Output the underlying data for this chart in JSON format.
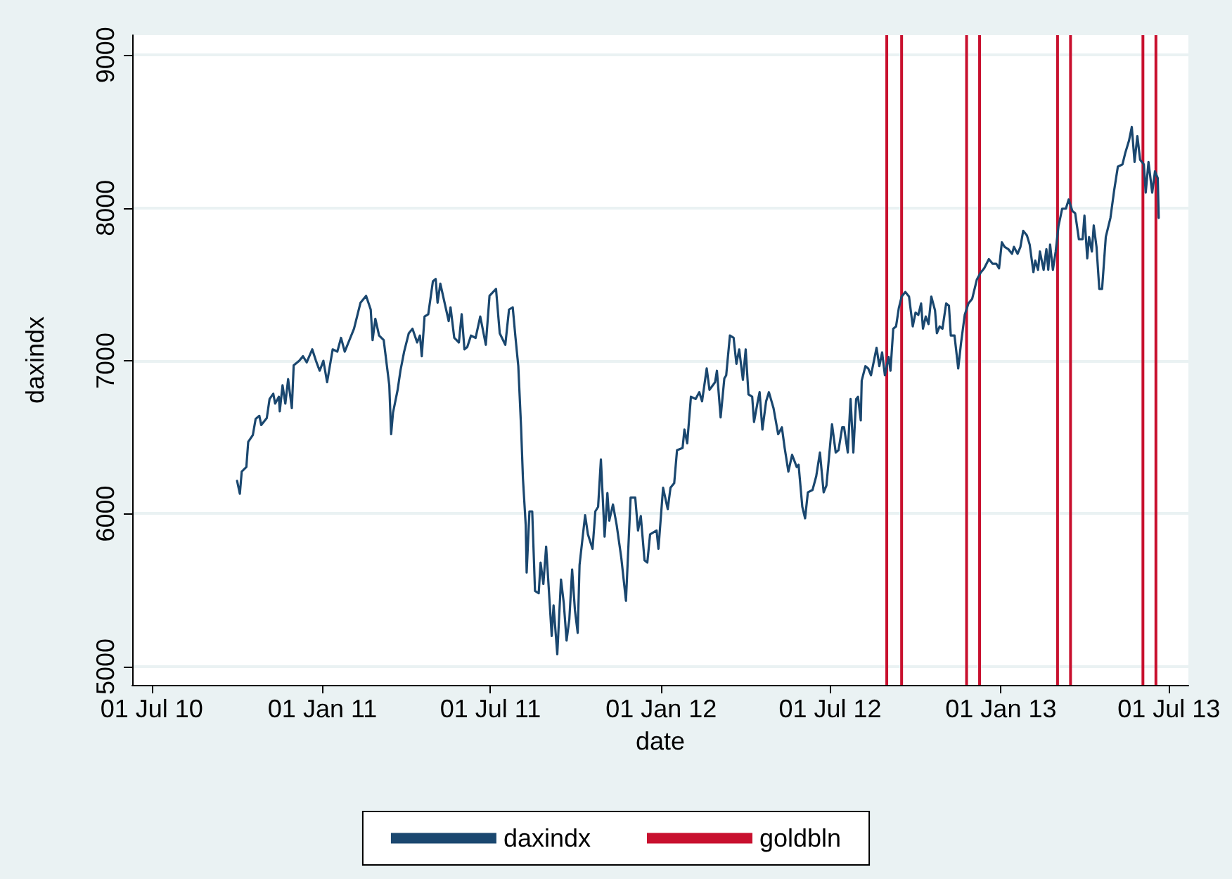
{
  "chart_data": {
    "type": "line",
    "xlabel": "date",
    "ylabel": "daxindx",
    "xlim": [
      "2010-06-10",
      "2013-07-22"
    ],
    "ylim": [
      4880,
      9130
    ],
    "xticks": [
      {
        "value": "2010-07-01",
        "label": "01 Jul 10"
      },
      {
        "value": "2011-01-01",
        "label": "01 Jan 11"
      },
      {
        "value": "2011-07-01",
        "label": "01 Jul 11"
      },
      {
        "value": "2012-01-01",
        "label": "01 Jan 12"
      },
      {
        "value": "2012-07-01",
        "label": "01 Jul 12"
      },
      {
        "value": "2013-01-01",
        "label": "01 Jan 13"
      },
      {
        "value": "2013-07-01",
        "label": "01 Jul 13"
      }
    ],
    "yticks": [
      5000,
      6000,
      7000,
      8000,
      9000
    ],
    "grid": "y",
    "legend": "bottom",
    "marker": "none",
    "series": [
      {
        "name": "daxindx",
        "color": "#1a476f",
        "x": [
          "2010-10-01",
          "2010-10-04",
          "2010-10-06",
          "2010-10-11",
          "2010-10-13",
          "2010-10-18",
          "2010-10-21",
          "2010-10-25",
          "2010-10-27",
          "2010-11-02",
          "2010-11-05",
          "2010-11-09",
          "2010-11-11",
          "2010-11-15",
          "2010-11-16",
          "2010-11-19",
          "2010-11-22",
          "2010-11-25",
          "2010-11-29",
          "2010-12-01",
          "2010-12-07",
          "2010-12-11",
          "2010-12-15",
          "2010-12-21",
          "2010-12-25",
          "2010-12-29",
          "2011-01-02",
          "2011-01-06",
          "2011-01-12",
          "2011-01-17",
          "2011-01-21",
          "2011-01-25",
          "2011-01-30",
          "2011-02-04",
          "2011-02-11",
          "2011-02-17",
          "2011-02-22",
          "2011-02-24",
          "2011-02-27",
          "2011-03-03",
          "2011-03-08",
          "2011-03-14",
          "2011-03-16",
          "2011-03-18",
          "2011-03-23",
          "2011-03-26",
          "2011-03-30",
          "2011-04-04",
          "2011-04-08",
          "2011-04-13",
          "2011-04-16",
          "2011-04-18",
          "2011-04-21",
          "2011-04-25",
          "2011-04-30",
          "2011-05-03",
          "2011-05-05",
          "2011-05-08",
          "2011-05-12",
          "2011-05-17",
          "2011-05-19",
          "2011-05-23",
          "2011-05-28",
          "2011-05-31",
          "2011-06-03",
          "2011-06-06",
          "2011-06-10",
          "2011-06-15",
          "2011-06-20",
          "2011-06-26",
          "2011-06-30",
          "2011-07-07",
          "2011-07-11",
          "2011-07-17",
          "2011-07-21",
          "2011-07-25",
          "2011-07-28",
          "2011-07-31",
          "2011-08-03",
          "2011-08-05",
          "2011-08-08",
          "2011-08-09",
          "2011-08-12",
          "2011-08-15",
          "2011-08-18",
          "2011-08-22",
          "2011-08-24",
          "2011-08-27",
          "2011-08-30",
          "2011-09-02",
          "2011-09-05",
          "2011-09-07",
          "2011-09-11",
          "2011-09-15",
          "2011-09-18",
          "2011-09-21",
          "2011-09-24",
          "2011-09-27",
          "2011-09-30",
          "2011-10-03",
          "2011-10-05",
          "2011-10-11",
          "2011-10-14",
          "2011-10-19",
          "2011-10-22",
          "2011-10-25",
          "2011-10-28",
          "2011-11-01",
          "2011-11-04",
          "2011-11-06",
          "2011-11-10",
          "2011-11-14",
          "2011-11-19",
          "2011-11-24",
          "2011-11-29",
          "2011-12-04",
          "2011-12-07",
          "2011-12-10",
          "2011-12-14",
          "2011-12-17",
          "2011-12-20",
          "2011-12-27",
          "2011-12-29",
          "2012-01-03",
          "2012-01-08",
          "2012-01-11",
          "2012-01-15",
          "2012-01-18",
          "2012-01-24",
          "2012-01-26",
          "2012-01-29",
          "2012-02-02",
          "2012-02-07",
          "2012-02-11",
          "2012-02-14",
          "2012-02-19",
          "2012-02-22",
          "2012-02-28",
          "2012-03-01",
          "2012-03-05",
          "2012-03-09",
          "2012-03-11",
          "2012-03-15",
          "2012-03-19",
          "2012-03-22",
          "2012-03-25",
          "2012-03-29",
          "2012-04-01",
          "2012-04-04",
          "2012-04-08",
          "2012-04-10",
          "2012-04-14",
          "2012-04-16",
          "2012-04-19",
          "2012-04-23",
          "2012-04-26",
          "2012-05-01",
          "2012-05-06",
          "2012-05-10",
          "2012-05-13",
          "2012-05-17",
          "2012-05-21",
          "2012-05-26",
          "2012-05-28",
          "2012-06-01",
          "2012-06-04",
          "2012-06-07",
          "2012-06-12",
          "2012-06-16",
          "2012-06-20",
          "2012-06-24",
          "2012-06-27",
          "2012-07-03",
          "2012-07-07",
          "2012-07-10",
          "2012-07-14",
          "2012-07-16",
          "2012-07-20",
          "2012-07-23",
          "2012-07-26",
          "2012-07-29",
          "2012-07-31",
          "2012-08-03",
          "2012-08-04",
          "2012-08-08",
          "2012-08-11",
          "2012-08-14",
          "2012-08-18",
          "2012-08-20",
          "2012-08-23",
          "2012-08-26",
          "2012-08-29",
          "2012-09-02",
          "2012-09-04",
          "2012-09-07",
          "2012-09-10",
          "2012-09-13",
          "2012-09-16",
          "2012-09-20",
          "2012-09-24",
          "2012-09-28",
          "2012-10-01",
          "2012-10-04",
          "2012-10-07",
          "2012-10-09",
          "2012-10-12",
          "2012-10-15",
          "2012-10-18",
          "2012-10-22",
          "2012-10-24",
          "2012-10-27",
          "2012-10-30",
          "2012-11-03",
          "2012-11-06",
          "2012-11-08",
          "2012-11-12",
          "2012-11-16",
          "2012-11-19",
          "2012-11-23",
          "2012-11-27",
          "2012-12-01",
          "2012-12-06",
          "2012-12-10",
          "2012-12-14",
          "2012-12-19",
          "2012-12-23",
          "2012-12-27",
          "2012-12-30",
          "2013-01-02",
          "2013-01-05",
          "2013-01-09",
          "2013-01-13",
          "2013-01-15",
          "2013-01-19",
          "2013-01-22",
          "2013-01-25",
          "2013-01-29",
          "2013-02-01",
          "2013-02-05",
          "2013-02-07",
          "2013-02-10",
          "2013-02-12",
          "2013-02-16",
          "2013-02-19",
          "2013-02-21",
          "2013-02-23",
          "2013-02-26",
          "2013-03-01",
          "2013-03-04",
          "2013-03-08",
          "2013-03-12",
          "2013-03-15",
          "2013-03-19",
          "2013-03-22",
          "2013-03-26",
          "2013-03-30",
          "2013-04-01",
          "2013-04-04",
          "2013-04-06",
          "2013-04-09",
          "2013-04-11",
          "2013-04-14",
          "2013-04-17",
          "2013-04-20",
          "2013-04-24",
          "2013-04-29",
          "2013-05-03",
          "2013-05-07",
          "2013-05-12",
          "2013-05-15",
          "2013-05-19",
          "2013-05-22",
          "2013-05-25",
          "2013-05-28",
          "2013-05-31",
          "2013-06-04",
          "2013-06-06",
          "2013-06-09",
          "2013-06-13",
          "2013-06-16",
          "2013-06-19",
          "2013-06-20"
        ],
        "values": [
          6215,
          6130,
          6275,
          6305,
          6470,
          6515,
          6620,
          6640,
          6580,
          6625,
          6750,
          6785,
          6720,
          6765,
          6670,
          6840,
          6720,
          6880,
          6690,
          6970,
          7000,
          7030,
          6990,
          7075,
          7000,
          6935,
          7000,
          6860,
          7075,
          7060,
          7150,
          7060,
          7135,
          7210,
          7380,
          7425,
          7335,
          7135,
          7275,
          7165,
          7135,
          6840,
          6520,
          6660,
          6810,
          6935,
          7060,
          7180,
          7210,
          7120,
          7165,
          7030,
          7290,
          7305,
          7520,
          7535,
          7380,
          7505,
          7395,
          7260,
          7350,
          7150,
          7120,
          7305,
          7075,
          7090,
          7165,
          7150,
          7290,
          7105,
          7425,
          7470,
          7180,
          7105,
          7335,
          7350,
          7150,
          6965,
          6565,
          6230,
          5925,
          5615,
          6015,
          6015,
          5495,
          5480,
          5680,
          5540,
          5785,
          5495,
          5200,
          5400,
          5080,
          5570,
          5415,
          5170,
          5310,
          5635,
          5370,
          5220,
          5665,
          5990,
          5865,
          5770,
          6015,
          6045,
          6355,
          5850,
          6135,
          5955,
          6060,
          5925,
          5710,
          5430,
          6105,
          6105,
          5890,
          5985,
          5695,
          5680,
          5865,
          5890,
          5770,
          6170,
          6030,
          6170,
          6200,
          6415,
          6430,
          6550,
          6460,
          6765,
          6750,
          6795,
          6735,
          6950,
          6810,
          6860,
          6935,
          6630,
          6885,
          6905,
          7165,
          7150,
          6980,
          7075,
          6875,
          7075,
          6780,
          6765,
          6600,
          6735,
          6795,
          6550,
          6735,
          6795,
          6690,
          6520,
          6565,
          6430,
          6275,
          6385,
          6305,
          6320,
          6045,
          5970,
          6140,
          6155,
          6245,
          6400,
          6140,
          6185,
          6585,
          6400,
          6415,
          6565,
          6565,
          6400,
          6750,
          6400,
          6750,
          6765,
          6610,
          6870,
          6965,
          6950,
          6905,
          7025,
          7085,
          6965,
          7055,
          6905,
          7025,
          6935,
          7210,
          7225,
          7345,
          7420,
          7450,
          7420,
          7225,
          7315,
          7300,
          7375,
          7210,
          7290,
          7240,
          7420,
          7330,
          7180,
          7225,
          7210,
          7375,
          7360,
          7165,
          7165,
          6950,
          7115,
          7300,
          7375,
          7405,
          7530,
          7575,
          7605,
          7665,
          7635,
          7635,
          7605,
          7775,
          7745,
          7730,
          7700,
          7745,
          7700,
          7745,
          7850,
          7820,
          7760,
          7580,
          7655,
          7595,
          7715,
          7595,
          7730,
          7595,
          7760,
          7595,
          7715,
          7880,
          7995,
          7995,
          8055,
          7980,
          7965,
          7795,
          7795,
          7950,
          7670,
          7810,
          7715,
          7885,
          7745,
          7470,
          7470,
          7810,
          7935,
          8115,
          8270,
          8285,
          8360,
          8440,
          8530,
          8300,
          8470,
          8315,
          8285,
          8100,
          8300,
          8100,
          8240,
          8195,
          7935
        ]
      },
      {
        "name": "goldbln",
        "type": "bar",
        "color": "#c8102e",
        "x": [
          "2012-08-31",
          "2012-09-16",
          "2012-11-25",
          "2012-12-09",
          "2013-03-03",
          "2013-03-17",
          "2013-06-03",
          "2013-06-17"
        ],
        "base": [
          4880,
          4880,
          4880,
          4880,
          4880,
          4880,
          4880,
          4880
        ],
        "values": [
          4250,
          4250,
          4250,
          4250,
          4250,
          4250,
          4250,
          4250
        ]
      }
    ]
  }
}
